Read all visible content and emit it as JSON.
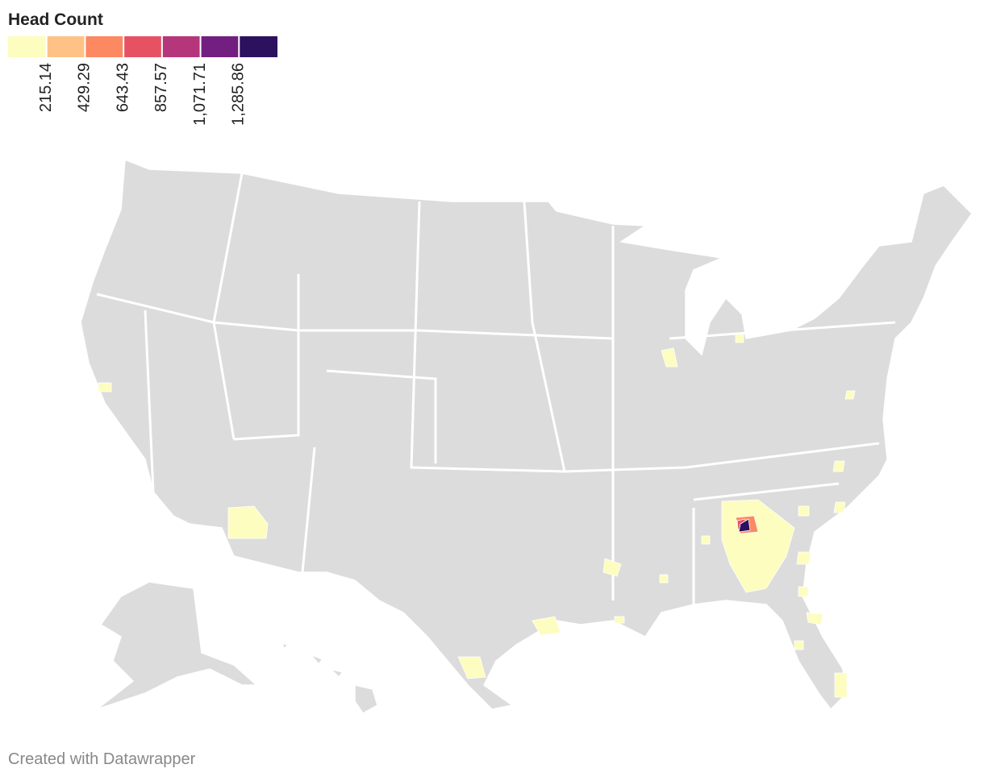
{
  "legend": {
    "title": "Head Count",
    "colors": [
      "#fcfdbf",
      "#fec287",
      "#fc8961",
      "#e75263",
      "#b5367a",
      "#721f81",
      "#2c115f"
    ],
    "ticks": [
      215.14,
      429.29,
      643.43,
      857.57,
      {
        "value": 1071.71,
        "label": "1,071.71"
      },
      {
        "value": 1285.86,
        "label": "1,285.86"
      }
    ]
  },
  "footer": "Created with Datawrapper"
}
